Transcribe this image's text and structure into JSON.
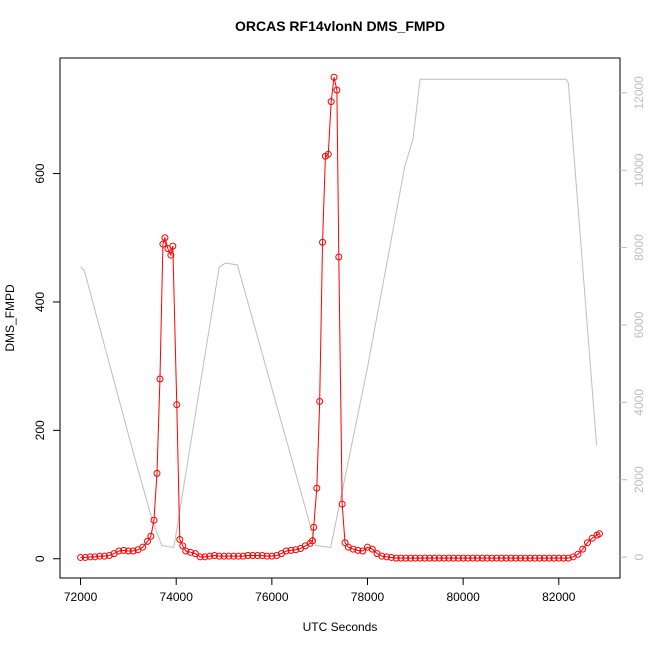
{
  "chart_data": {
    "type": "line",
    "title": "ORCAS RF14vlonN DMS_FMPD",
    "x_label": "UTC Seconds",
    "y_label": "DMS_FMPD",
    "xlim": [
      71570,
      83280
    ],
    "xticks": [
      72000,
      74000,
      76000,
      78000,
      80000,
      82000
    ],
    "ylim": [
      -30,
      780
    ],
    "yticks": [
      0,
      200,
      400,
      600
    ],
    "y2lim": [
      -540,
      12900
    ],
    "y2ticks": [
      0,
      2000,
      4000,
      6000,
      8000,
      10000,
      12000
    ],
    "series": [
      {
        "color": "#ff0000",
        "markers": true,
        "x": [
          72000,
          72100,
          72200,
          72300,
          72400,
          72500,
          72600,
          72700,
          72800,
          72900,
          73000,
          73100,
          73200,
          73300,
          73400,
          73470,
          73535,
          73598,
          73660,
          73722,
          73764,
          73826,
          73888,
          73929,
          74012,
          74075,
          74137,
          74200,
          74300,
          74400,
          74500,
          74600,
          74700,
          74800,
          74900,
          75000,
          75100,
          75200,
          75300,
          75400,
          75500,
          75600,
          75700,
          75800,
          75900,
          76000,
          76100,
          76200,
          76300,
          76400,
          76500,
          76600,
          76700,
          76800,
          76850,
          76875,
          76940,
          77000,
          77060,
          77120,
          77180,
          77240,
          77300,
          77360,
          77400,
          77470,
          77530,
          77600,
          77700,
          77800,
          77900,
          78000,
          78100,
          78200,
          78300,
          78400,
          78500,
          78600,
          78700,
          78800,
          78900,
          79000,
          79100,
          79200,
          79300,
          79400,
          79500,
          79600,
          79700,
          79800,
          79900,
          80000,
          80100,
          80200,
          80300,
          80400,
          80500,
          80600,
          80700,
          80800,
          80900,
          81000,
          81100,
          81200,
          81300,
          81400,
          81500,
          81600,
          81700,
          81800,
          81900,
          82000,
          82100,
          82200,
          82300,
          82400,
          82500,
          82600,
          82700,
          82800,
          82850
        ],
        "values": [
          2,
          2,
          3,
          3,
          4,
          4,
          5,
          8,
          12,
          13,
          12,
          12,
          14,
          18,
          27,
          35,
          60,
          133,
          280,
          490,
          500,
          483,
          473,
          487,
          240,
          30,
          20,
          12,
          10,
          8,
          3,
          3,
          4,
          5,
          4,
          4,
          4,
          4,
          4,
          4,
          5,
          5,
          5,
          5,
          4,
          4,
          5,
          8,
          12,
          13,
          14,
          16,
          20,
          24,
          28,
          49,
          110,
          245,
          493,
          627,
          630,
          712,
          750,
          730,
          470,
          85,
          25,
          18,
          15,
          13,
          12,
          18,
          15,
          8,
          4,
          3,
          2,
          1,
          1,
          1,
          1,
          1,
          1,
          1,
          1,
          1,
          1,
          1,
          1,
          1,
          1,
          1,
          1,
          1,
          1,
          1,
          1,
          1,
          1,
          1,
          1,
          1,
          1,
          1,
          1,
          1,
          1,
          1,
          1,
          1,
          1,
          1,
          1,
          1,
          3,
          7,
          15,
          25,
          32,
          37,
          39
        ]
      },
      {
        "color": "#bebebe",
        "axis": "y2",
        "markers": false,
        "x": [
          72000,
          72080,
          73080,
          73500,
          73700,
          73950,
          74900,
          75030,
          75280,
          76920,
          77230,
          78000,
          78780,
          78950,
          79100,
          82150,
          82200,
          82790
        ],
        "values": [
          7500,
          7400,
          2800,
          950,
          300,
          250,
          7500,
          7600,
          7550,
          300,
          250,
          4900,
          10100,
          10800,
          12350,
          12350,
          12250,
          2900
        ]
      }
    ]
  }
}
